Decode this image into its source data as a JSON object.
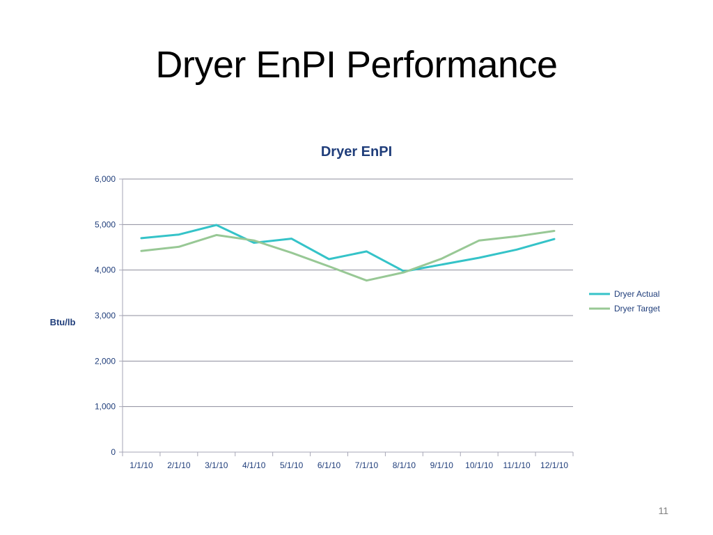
{
  "slide": {
    "title": "Dryer EnPI Performance",
    "page_number": "11"
  },
  "chart_data": {
    "type": "line",
    "title": "Dryer EnPI",
    "xlabel": "",
    "ylabel": "Btu/lb",
    "ylim": [
      0,
      6000
    ],
    "yticks": [
      0,
      1000,
      2000,
      3000,
      4000,
      5000,
      6000
    ],
    "ytick_labels": [
      "0",
      "1,000",
      "2,000",
      "3,000",
      "4,000",
      "5,000",
      "6,000"
    ],
    "categories": [
      "1/1/10",
      "2/1/10",
      "3/1/10",
      "4/1/10",
      "5/1/10",
      "6/1/10",
      "7/1/10",
      "8/1/10",
      "9/1/10",
      "10/1/10",
      "11/1/10",
      "12/1/10"
    ],
    "grid": true,
    "legend_position": "right",
    "colors": {
      "title": "#1f3d7a",
      "axis_text": "#1f3d7a",
      "grid": "#8c8c9c",
      "axis": "#a6a6b6"
    },
    "series": [
      {
        "name": "Dryer Actual",
        "color": "#35c3c8",
        "values": [
          4700,
          4780,
          4990,
          4600,
          4690,
          4240,
          4410,
          3970,
          4120,
          4270,
          4450,
          4680
        ]
      },
      {
        "name": "Dryer Target",
        "color": "#98c895",
        "values": [
          4420,
          4510,
          4770,
          4650,
          4380,
          4080,
          3770,
          3950,
          4250,
          4650,
          4740,
          4860
        ]
      }
    ]
  }
}
